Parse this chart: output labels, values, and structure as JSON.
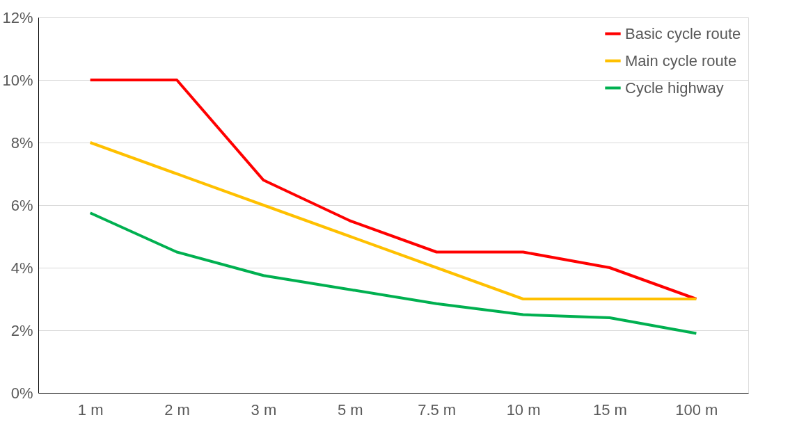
{
  "chart_data": {
    "type": "line",
    "categories": [
      "1 m",
      "2 m",
      "3 m",
      "5 m",
      "7.5 m",
      "10 m",
      "15 m",
      "100 m"
    ],
    "series": [
      {
        "name": "Basic cycle route",
        "color": "#ff0000",
        "values": [
          10,
          10,
          6.8,
          5.5,
          4.5,
          4.5,
          4.0,
          3.0
        ]
      },
      {
        "name": "Main cycle route",
        "color": "#ffc000",
        "values": [
          8,
          7,
          6,
          5,
          4,
          3,
          3,
          3
        ]
      },
      {
        "name": "Cycle highway",
        "color": "#00b050",
        "values": [
          5.75,
          4.5,
          3.75,
          3.3,
          2.85,
          2.5,
          2.4,
          1.9
        ]
      }
    ],
    "ylim": [
      0,
      12
    ],
    "yticks": [
      {
        "value": 0,
        "label": "0%"
      },
      {
        "value": 2,
        "label": "2%"
      },
      {
        "value": 4,
        "label": "4%"
      },
      {
        "value": 6,
        "label": "6%"
      },
      {
        "value": 8,
        "label": "8%"
      },
      {
        "value": 10,
        "label": "10%"
      },
      {
        "value": 12,
        "label": "12%"
      }
    ],
    "grid": "y",
    "legend": "top right",
    "marker": "none",
    "line_style": "solid"
  }
}
